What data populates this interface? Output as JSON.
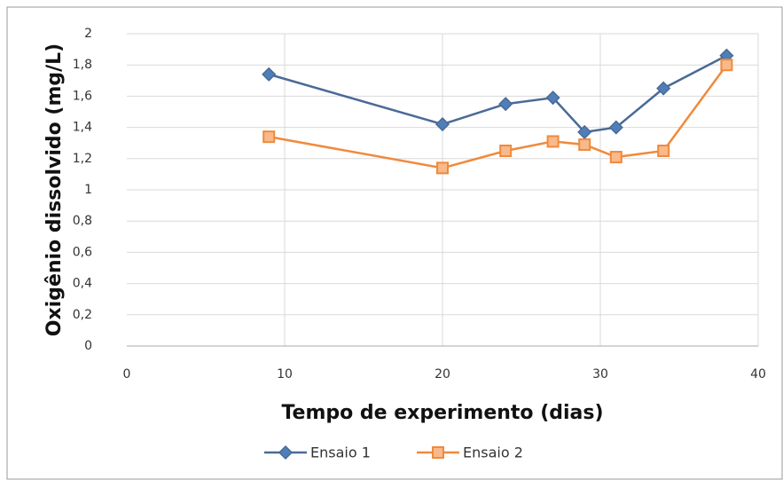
{
  "chart_data": {
    "type": "line",
    "x_label": "Tempo de experimento (dias)",
    "y_label": "Oxigênio dissolvido (mg/L)",
    "x": [
      9,
      20,
      24,
      27,
      29,
      31,
      34,
      38
    ],
    "series": [
      {
        "name": "Ensaio 1",
        "color": "#4a6a96",
        "marker": "diamond",
        "values": [
          1.74,
          1.42,
          1.55,
          1.59,
          1.37,
          1.4,
          1.65,
          1.86
        ]
      },
      {
        "name": "Ensaio 2",
        "color": "#f08a3c",
        "marker": "square",
        "values": [
          1.34,
          1.14,
          1.25,
          1.31,
          1.29,
          1.21,
          1.25,
          1.8
        ]
      }
    ],
    "xlim": [
      0,
      40
    ],
    "xticks": [
      0,
      10,
      20,
      30,
      40
    ],
    "ylim": [
      0,
      2
    ],
    "yticks": [
      0,
      {
        "value": 0.2,
        "label": "0,2"
      },
      {
        "value": 0.4,
        "label": "0,4"
      },
      {
        "value": 0.6,
        "label": "0,6"
      },
      {
        "value": 0.8,
        "label": "0,8"
      },
      1,
      {
        "value": 1.2,
        "label": "1,2"
      },
      {
        "value": 1.4,
        "label": "1,4"
      },
      {
        "value": 1.6,
        "label": "1,6"
      },
      {
        "value": 1.8,
        "label": "1,8"
      },
      2
    ],
    "grid": true,
    "legend": "bottom"
  }
}
